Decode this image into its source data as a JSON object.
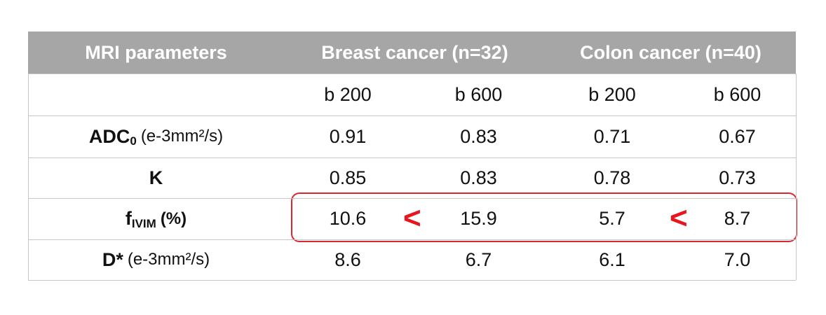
{
  "table": {
    "header": [
      "MRI parameters",
      "Breast cancer (n=32)",
      "Colon cancer (n=40)"
    ],
    "subheader": [
      "b 200",
      "b 600",
      "b 200",
      "b 600"
    ],
    "rows": [
      {
        "label": {
          "main": "ADC",
          "sub": "0",
          "unit": "(e-3mm²/s)"
        },
        "values": [
          "0.91",
          "0.83",
          "0.71",
          "0.67"
        ]
      },
      {
        "label": {
          "main": "K"
        },
        "values": [
          "0.85",
          "0.83",
          "0.78",
          "0.73"
        ]
      },
      {
        "label": {
          "main": "f",
          "sub": "IVIM",
          "unit": "(%)"
        },
        "values": [
          "10.6",
          "15.9",
          "5.7",
          "8.7"
        ]
      },
      {
        "label": {
          "main": "D*",
          "unit": "(e-3mm²/s)"
        },
        "values": [
          "8.6",
          "6.7",
          "6.1",
          "7.0"
        ]
      }
    ]
  },
  "annotation": {
    "comparisons": [
      "<",
      "<"
    ]
  }
}
